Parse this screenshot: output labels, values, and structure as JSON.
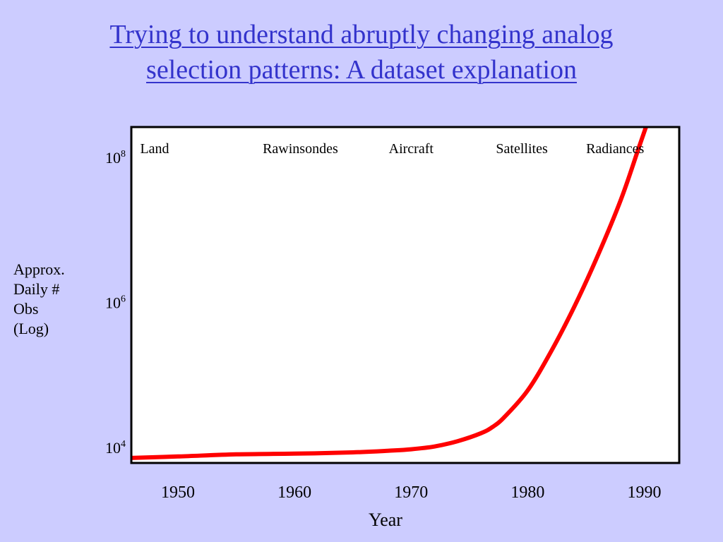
{
  "slide": {
    "title_line1": "Trying to understand abruptly changing analog",
    "title_line2": "selection patterns: A dataset explanation",
    "title_color": "#3333cc",
    "background_color": "#ccccff"
  },
  "chart_data": {
    "type": "line",
    "title": "Trying to understand abruptly changing analog selection patterns: A dataset explanation",
    "xlabel": "Year",
    "ylabel_lines": [
      "Approx.",
      "Daily #",
      "Obs",
      "(Log)"
    ],
    "y_scale": "log",
    "xlim": [
      1946,
      1993
    ],
    "ylim": [
      7000,
      300000000
    ],
    "x_ticks": [
      1950,
      1960,
      1970,
      1980,
      1990
    ],
    "y_ticks": [
      {
        "value": 10000,
        "base": "10",
        "exp": "4"
      },
      {
        "value": 1000000,
        "base": "10",
        "exp": "6"
      },
      {
        "value": 100000000,
        "base": "10",
        "exp": "8"
      }
    ],
    "grid": false,
    "legend": "none",
    "era_labels": [
      {
        "x": 1948,
        "text": "Land"
      },
      {
        "x": 1960.5,
        "text": "Rawinsondes"
      },
      {
        "x": 1970,
        "text": "Aircraft"
      },
      {
        "x": 1979.5,
        "text": "Satellites"
      },
      {
        "x": 1987.5,
        "text": "Radiances"
      }
    ],
    "series": [
      {
        "color": "#ff0000",
        "x": [
          1946,
          1950,
          1955,
          1960,
          1965,
          1968,
          1970,
          1972,
          1974,
          1976,
          1977,
          1978,
          1980,
          1982,
          1984,
          1986,
          1988,
          1989.5
        ],
        "y": [
          8200,
          8600,
          9200,
          9400,
          9800,
          10300,
          10800,
          11800,
          14000,
          18000,
          22000,
          30000,
          70000,
          240000,
          1000000,
          5000000,
          30000000,
          150000000
        ]
      }
    ]
  }
}
